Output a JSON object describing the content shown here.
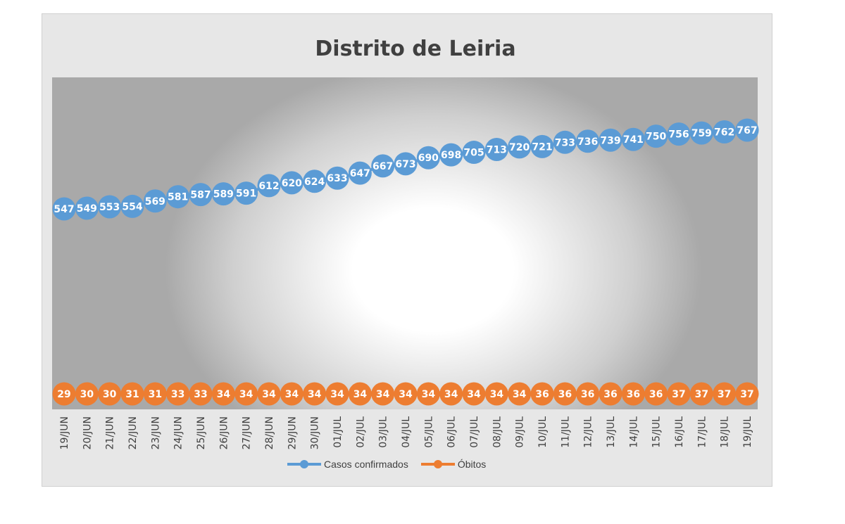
{
  "chart_data": {
    "type": "line",
    "title": "Distrito de Leiria",
    "categories": [
      "19/JUN",
      "20/JUN",
      "21/JUN",
      "22/JUN",
      "23/JUN",
      "24/JUN",
      "25/JUN",
      "26/JUN",
      "27/JUN",
      "28/JUN",
      "29/JUN",
      "30/JUN",
      "01/JUL",
      "02/JUL",
      "03/JUL",
      "04/JUL",
      "05/JUL",
      "06/JUL",
      "07/JUL",
      "08/JUL",
      "09/JUL",
      "10/JUL",
      "11/JUL",
      "12/JUL",
      "13/JUL",
      "14/JUL",
      "15/JUL",
      "16/JUL",
      "17/JUL",
      "18/JUL",
      "19/JUL"
    ],
    "series": [
      {
        "name": "Casos confirmados",
        "color": "#5b9bd5",
        "values": [
          547,
          549,
          553,
          554,
          569,
          581,
          587,
          589,
          591,
          612,
          620,
          624,
          633,
          647,
          667,
          673,
          690,
          698,
          705,
          713,
          720,
          721,
          733,
          736,
          739,
          741,
          750,
          756,
          759,
          762,
          767
        ]
      },
      {
        "name": "Óbitos",
        "color": "#ed7d31",
        "values": [
          29,
          30,
          30,
          31,
          31,
          33,
          33,
          34,
          34,
          34,
          34,
          34,
          34,
          34,
          34,
          34,
          34,
          34,
          34,
          34,
          34,
          36,
          36,
          36,
          36,
          36,
          36,
          37,
          37,
          37,
          37
        ]
      }
    ],
    "ylim": [
      0,
      900
    ],
    "grid": false,
    "data_labels": true,
    "legend_position": "bottom"
  }
}
